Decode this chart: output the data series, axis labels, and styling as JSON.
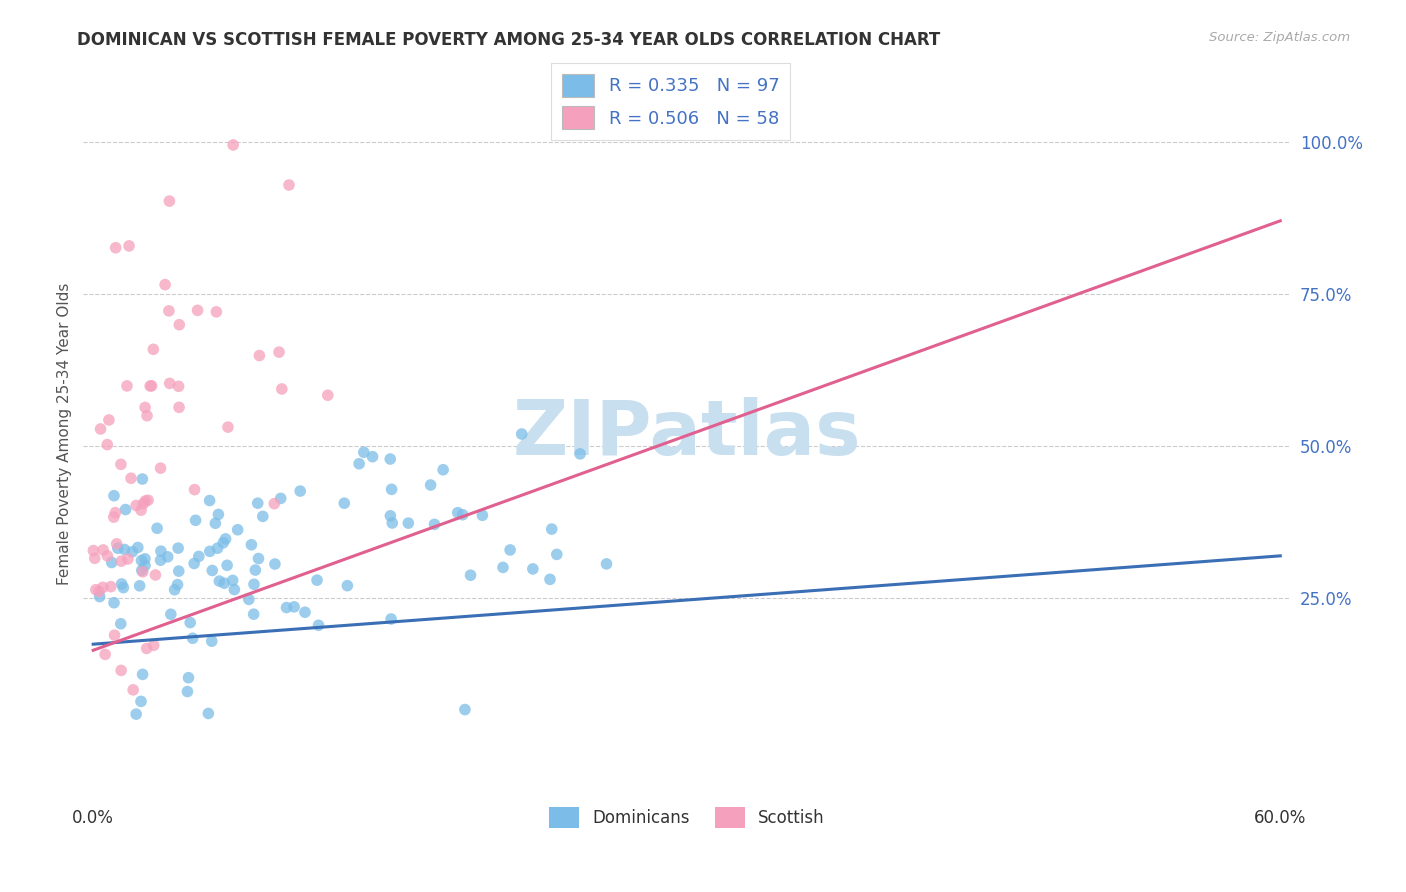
{
  "title": "DOMINICAN VS SCOTTISH FEMALE POVERTY AMONG 25-34 YEAR OLDS CORRELATION CHART",
  "source": "Source: ZipAtlas.com",
  "ylabel": "Female Poverty Among 25-34 Year Olds",
  "xlim": [
    0.0,
    0.6
  ],
  "ylim": [
    -0.08,
    1.12
  ],
  "ytick_vals": [
    0.25,
    0.5,
    0.75,
    1.0
  ],
  "ytick_labels": [
    "25.0%",
    "50.0%",
    "75.0%",
    "100.0%"
  ],
  "xtick_vals": [
    0.0,
    0.6
  ],
  "xtick_labels": [
    "0.0%",
    "60.0%"
  ],
  "watermark": "ZIPatlas",
  "legend_line1": "R = 0.335   N = 97",
  "legend_line2": "R = 0.506   N = 58",
  "color_dominican": "#7bbde8",
  "color_scottish": "#f5a0bc",
  "color_line_dominican": "#3a6fb5",
  "color_line_scottish": "#e06090",
  "background_color": "#ffffff",
  "grid_color": "#cccccc",
  "title_color": "#333333",
  "source_color": "#aaaaaa",
  "ytick_color": "#4472c4",
  "watermark_color": "#c8dff0"
}
